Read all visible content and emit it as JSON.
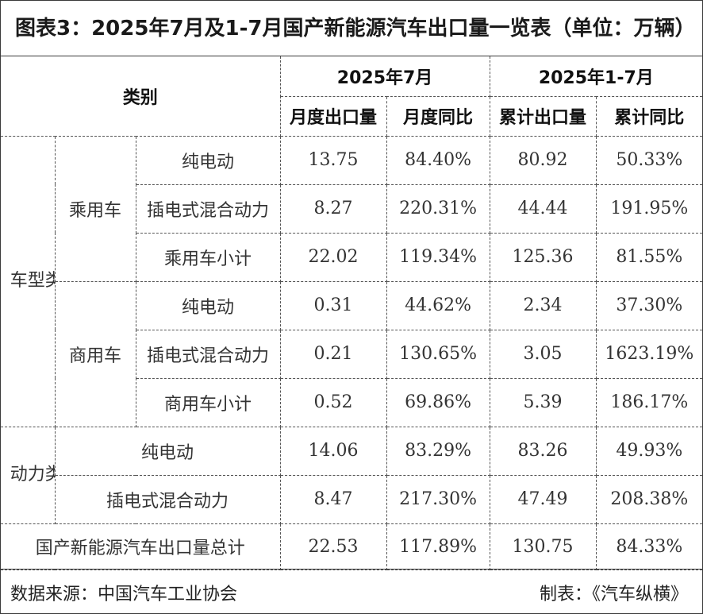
{
  "title": "图表3：2025年7月及1-7月国产新能源汽车出口量一览表（单位：万辆）",
  "header": {
    "category": "类别",
    "period_month": "2025年7月",
    "period_ytd": "2025年1-7月",
    "monthly_export": "月度出口量",
    "monthly_yoy": "月度同比",
    "cumulative_export": "累计出口量",
    "cumulative_yoy": "累计同比"
  },
  "groups": {
    "vehicle_type": "车型类别",
    "power_type": "动力类别",
    "passenger": "乘用车",
    "commercial": "商用车"
  },
  "rows": [
    {
      "label": "纯电动",
      "monthly_export": "13.75",
      "monthly_yoy": "84.40%",
      "cumulative_export": "80.92",
      "cumulative_yoy": "50.33%"
    },
    {
      "label": "插电式混合动力",
      "monthly_export": "8.27",
      "monthly_yoy": "220.31%",
      "cumulative_export": "44.44",
      "cumulative_yoy": "191.95%"
    },
    {
      "label": "乘用车小计",
      "monthly_export": "22.02",
      "monthly_yoy": "119.34%",
      "cumulative_export": "125.36",
      "cumulative_yoy": "81.55%"
    },
    {
      "label": "纯电动",
      "monthly_export": "0.31",
      "monthly_yoy": "44.62%",
      "cumulative_export": "2.34",
      "cumulative_yoy": "37.30%"
    },
    {
      "label": "插电式混合动力",
      "monthly_export": "0.21",
      "monthly_yoy": "130.65%",
      "cumulative_export": "3.05",
      "cumulative_yoy": "1623.19%"
    },
    {
      "label": "商用车小计",
      "monthly_export": "0.52",
      "monthly_yoy": "69.86%",
      "cumulative_export": "5.39",
      "cumulative_yoy": "186.17%"
    },
    {
      "label": "纯电动",
      "monthly_export": "14.06",
      "monthly_yoy": "83.29%",
      "cumulative_export": "83.26",
      "cumulative_yoy": "49.93%"
    },
    {
      "label": "插电式混合动力",
      "monthly_export": "8.47",
      "monthly_yoy": "217.30%",
      "cumulative_export": "47.49",
      "cumulative_yoy": "208.38%"
    },
    {
      "label": "国产新能源汽车出口量总计",
      "monthly_export": "22.53",
      "monthly_yoy": "117.89%",
      "cumulative_export": "130.75",
      "cumulative_yoy": "84.33%"
    }
  ],
  "footer": {
    "source": "数据来源：中国汽车工业协会",
    "maker": "制表：《汽车纵横》"
  }
}
